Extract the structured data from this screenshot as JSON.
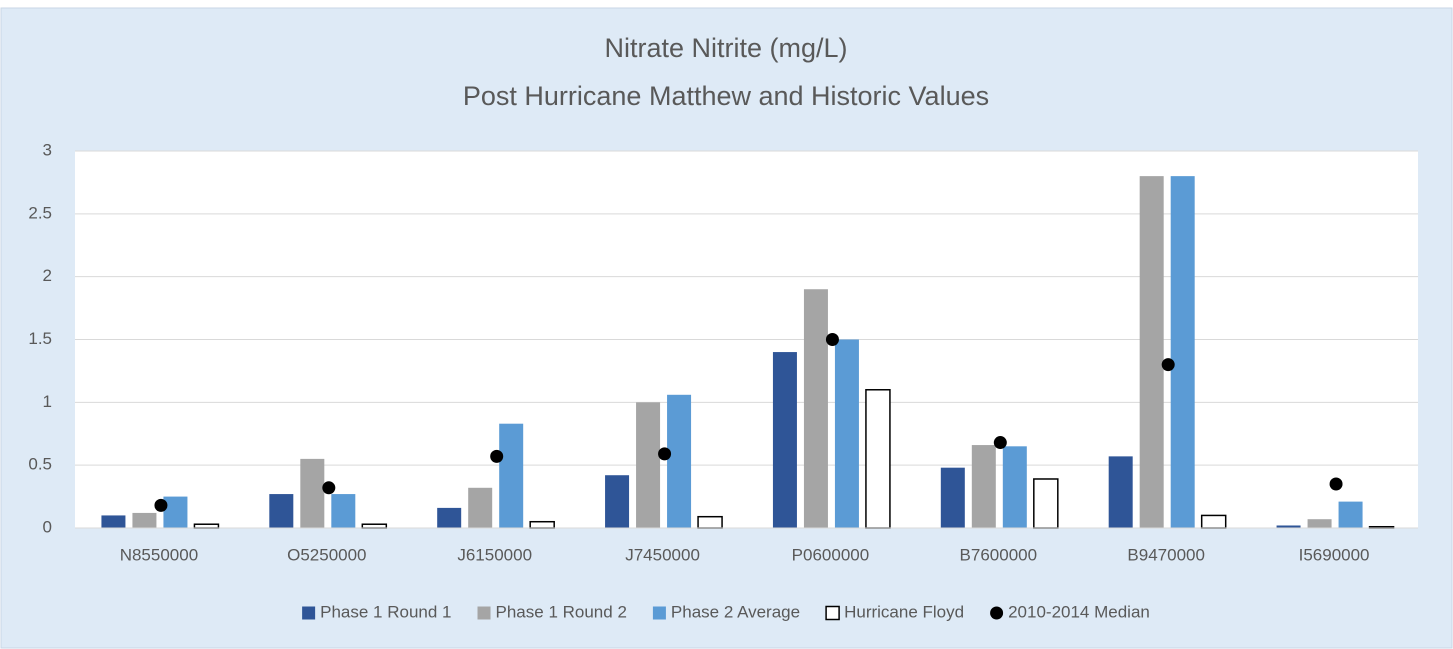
{
  "chart_data": {
    "type": "bar",
    "title": "Nitrate Nitrite (mg/L)",
    "subtitle": "Post Hurricane Matthew and Historic Values",
    "categories": [
      "N8550000",
      "O5250000",
      "J6150000",
      "J7450000",
      "P0600000",
      "B7600000",
      "B9470000",
      "I5690000"
    ],
    "series": [
      {
        "name": "Phase 1 Round 1",
        "color": "#2f5597",
        "values": [
          0.1,
          0.27,
          0.16,
          0.42,
          1.4,
          0.48,
          0.57,
          0.02
        ]
      },
      {
        "name": "Phase 1 Round 2",
        "color": "#a5a5a5",
        "values": [
          0.12,
          0.55,
          0.32,
          1.0,
          1.9,
          0.66,
          2.8,
          0.07
        ]
      },
      {
        "name": "Phase 2 Average",
        "color": "#5b9bd5",
        "values": [
          0.25,
          0.27,
          0.83,
          1.06,
          1.5,
          0.65,
          2.8,
          0.21
        ]
      },
      {
        "name": "Hurricane Floyd",
        "color": "#ffffff",
        "values": [
          0.03,
          0.03,
          0.05,
          0.09,
          1.1,
          0.39,
          0.1,
          0.01
        ]
      },
      {
        "name": "2010-2014 Median",
        "color": "#000000",
        "type": "scatter",
        "values": [
          0.18,
          0.32,
          0.57,
          0.59,
          1.5,
          0.68,
          1.3,
          0.35
        ]
      }
    ],
    "ylim": [
      0,
      3
    ],
    "yticks": [
      0,
      0.5,
      1,
      1.5,
      2,
      2.5,
      3
    ],
    "grid": true,
    "legend": "bottom"
  }
}
